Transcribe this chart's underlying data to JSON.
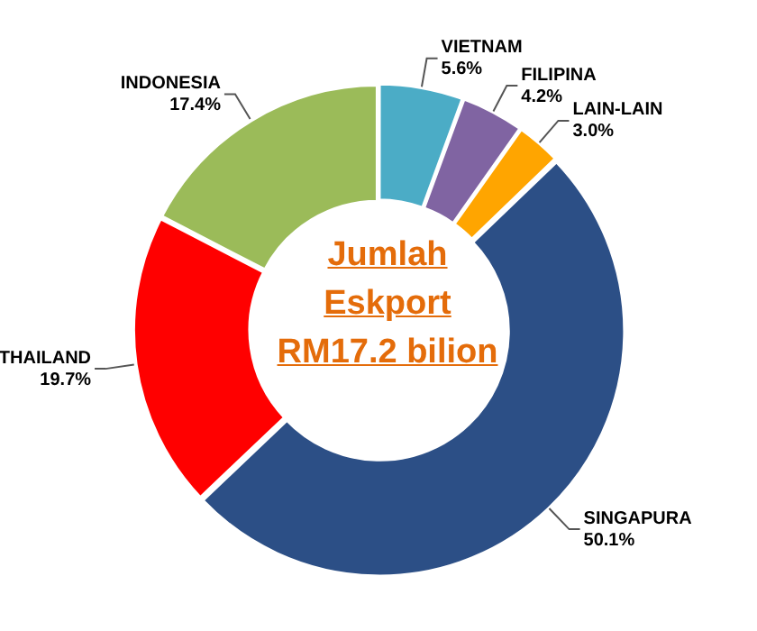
{
  "chart_data": {
    "type": "donut",
    "title": "Jumlah Eskport RM17.2 bilion",
    "categories": [
      "VIETNAM",
      "FILIPINA",
      "LAIN-LAIN",
      "SINGAPURA",
      "THAILAND",
      "INDONESIA"
    ],
    "values": [
      5.6,
      4.2,
      3.0,
      50.1,
      19.7,
      17.4
    ],
    "colors": [
      "#4bacc6",
      "#8064a2",
      "#ffa500",
      "#2c4f86",
      "#ff0000",
      "#9bbb59"
    ],
    "value_labels": [
      "5.6%",
      "4.2%",
      "3.0%",
      "50.1%",
      "19.7%",
      "17.4%"
    ]
  }
}
